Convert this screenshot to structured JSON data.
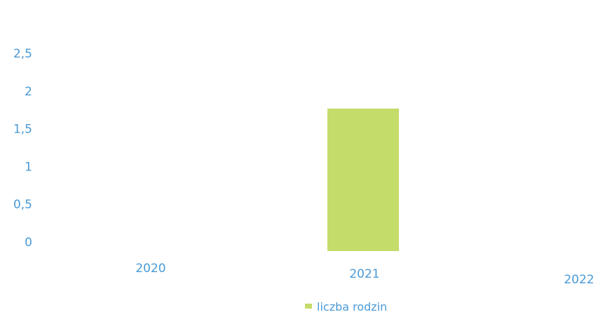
{
  "chart_data": {
    "type": "bar",
    "categories": [
      "2020",
      "2021",
      "2022"
    ],
    "series": [
      {
        "name": "liczba rodzin",
        "values": [
          0,
          2,
          0
        ]
      }
    ],
    "title": "",
    "xlabel": "",
    "ylabel": "",
    "ylim": [
      0,
      2.5
    ],
    "y_ticks": [
      "0",
      "0,5",
      "1",
      "1,5",
      "2",
      "2,5"
    ],
    "grid": false,
    "legend": "bottom",
    "colors": {
      "bar": "#c4dc6a",
      "text": "#4a9ad6"
    }
  }
}
